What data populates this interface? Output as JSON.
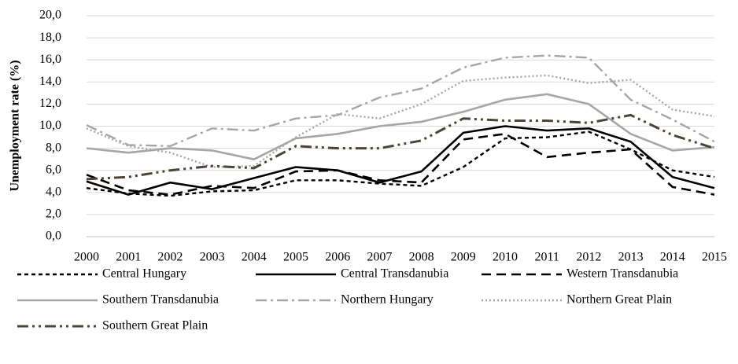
{
  "chart_data": {
    "type": "line",
    "y_label": "Unemployment rate  (%)",
    "x": [
      2000,
      2001,
      2002,
      2003,
      2004,
      2005,
      2006,
      2007,
      2008,
      2009,
      2010,
      2011,
      2012,
      2013,
      2014,
      2015
    ],
    "xlim": [
      2000,
      2015
    ],
    "xticks": [
      2000,
      2001,
      2002,
      2003,
      2004,
      2005,
      2006,
      2007,
      2008,
      2009,
      2010,
      2011,
      2012,
      2013,
      2014,
      2015
    ],
    "ylim": [
      0,
      20
    ],
    "yticks": [
      {
        "value": 0,
        "label": "0,0"
      },
      {
        "value": 2,
        "label": "2,0"
      },
      {
        "value": 4,
        "label": "4,0"
      },
      {
        "value": 6,
        "label": "6,0"
      },
      {
        "value": 8,
        "label": "8,0"
      },
      {
        "value": 10,
        "label": "10,0"
      },
      {
        "value": 12,
        "label": "12,0"
      },
      {
        "value": 14,
        "label": "14,0"
      },
      {
        "value": 16,
        "label": "16,0"
      },
      {
        "value": 18,
        "label": "18,0"
      },
      {
        "value": 20,
        "label": "20,0"
      }
    ],
    "grid": true,
    "legend": "bottom",
    "series": [
      {
        "name": "Central Hungary",
        "color": "#000000",
        "dash": "short-dash",
        "values": [
          4.4,
          3.9,
          3.7,
          4.1,
          4.2,
          5.1,
          5.1,
          4.8,
          4.6,
          6.3,
          8.9,
          9.0,
          9.5,
          7.9,
          6.0,
          5.4
        ]
      },
      {
        "name": "Central Transdanubia",
        "color": "#000000",
        "dash": "solid",
        "values": [
          5.0,
          3.8,
          4.9,
          4.3,
          5.3,
          6.3,
          6.0,
          4.9,
          5.9,
          9.4,
          10.0,
          9.6,
          9.8,
          8.6,
          5.4,
          4.4
        ]
      },
      {
        "name": "Western Transdanubia",
        "color": "#000000",
        "dash": "long-dash",
        "values": [
          5.6,
          4.2,
          3.8,
          4.6,
          4.4,
          5.9,
          6.0,
          5.1,
          4.9,
          8.8,
          9.3,
          7.2,
          7.6,
          7.9,
          4.5,
          3.8
        ]
      },
      {
        "name": "Southern Transdanubia",
        "color": "#a6a6a6",
        "dash": "solid",
        "values": [
          8.0,
          7.6,
          8.0,
          7.8,
          7.0,
          8.9,
          9.3,
          10.0,
          10.4,
          11.3,
          12.4,
          12.9,
          12.0,
          9.3,
          7.8,
          8.1
        ]
      },
      {
        "name": "Northern Hungary",
        "color": "#a6a6a6",
        "dash": "dash-dot",
        "values": [
          10.1,
          8.3,
          8.2,
          9.8,
          9.6,
          10.7,
          11.0,
          12.6,
          13.4,
          15.3,
          16.2,
          16.4,
          16.2,
          12.4,
          10.6,
          8.6
        ]
      },
      {
        "name": "Northern Great Plain",
        "color": "#a6a6a6",
        "dash": "dot",
        "values": [
          9.8,
          8.2,
          7.6,
          6.3,
          6.4,
          9.0,
          11.1,
          10.7,
          12.0,
          14.1,
          14.4,
          14.6,
          13.9,
          14.2,
          11.5,
          10.9
        ]
      },
      {
        "name": "Southern Great Plain",
        "color": "#4a4535",
        "dash": "long-dash-dot-dot",
        "values": [
          5.2,
          5.4,
          6.0,
          6.4,
          6.2,
          8.2,
          8.0,
          8.0,
          8.7,
          10.7,
          10.5,
          10.5,
          10.3,
          11.0,
          9.2,
          8.0
        ]
      }
    ]
  }
}
